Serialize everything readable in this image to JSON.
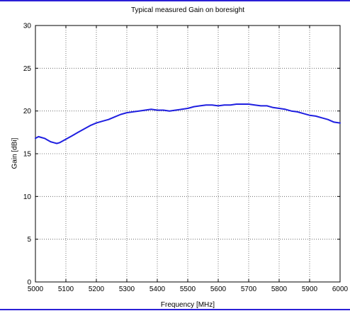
{
  "colors": {
    "accent_rule": "#2a1fd6",
    "series": "#1f1fe0",
    "grid": "#555555",
    "axes": "#000000"
  },
  "chart_data": {
    "type": "line",
    "title": "Typical measured Gain on boresight",
    "xlabel": "Frequency [MHz]",
    "ylabel": "Gain [dBi]",
    "xlim": [
      5000,
      6000
    ],
    "ylim": [
      0,
      30
    ],
    "xticks": [
      5000,
      5100,
      5200,
      5300,
      5400,
      5500,
      5600,
      5700,
      5800,
      5900,
      6000
    ],
    "yticks": [
      0,
      5,
      10,
      15,
      20,
      25,
      30
    ],
    "grid": true,
    "series": [
      {
        "x": [
          5000,
          5010,
          5020,
          5030,
          5040,
          5050,
          5060,
          5070,
          5080,
          5090,
          5100,
          5120,
          5140,
          5160,
          5180,
          5200,
          5220,
          5240,
          5260,
          5280,
          5300,
          5320,
          5340,
          5360,
          5380,
          5400,
          5420,
          5440,
          5460,
          5480,
          5500,
          5520,
          5540,
          5560,
          5580,
          5600,
          5620,
          5640,
          5660,
          5680,
          5700,
          5720,
          5740,
          5760,
          5780,
          5800,
          5820,
          5840,
          5860,
          5880,
          5900,
          5920,
          5940,
          5960,
          5980,
          6000
        ],
        "y": [
          16.8,
          17.0,
          16.9,
          16.8,
          16.6,
          16.4,
          16.3,
          16.2,
          16.3,
          16.5,
          16.7,
          17.1,
          17.5,
          17.9,
          18.3,
          18.6,
          18.8,
          19.0,
          19.3,
          19.6,
          19.8,
          19.9,
          20.0,
          20.1,
          20.2,
          20.1,
          20.1,
          20.0,
          20.1,
          20.2,
          20.3,
          20.5,
          20.6,
          20.7,
          20.7,
          20.6,
          20.7,
          20.7,
          20.8,
          20.8,
          20.8,
          20.7,
          20.6,
          20.6,
          20.4,
          20.3,
          20.2,
          20.0,
          19.9,
          19.7,
          19.5,
          19.4,
          19.2,
          19.0,
          18.7,
          18.6
        ]
      }
    ]
  }
}
